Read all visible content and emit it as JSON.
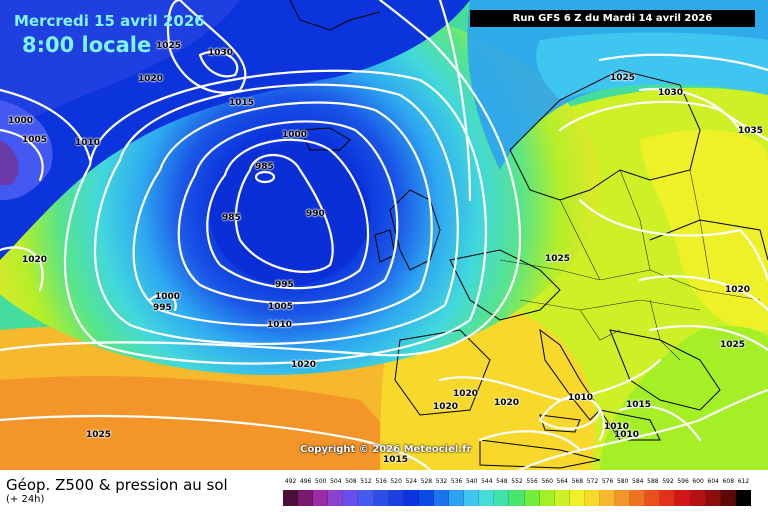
{
  "header": {
    "date": "Mercredi 15 avril 2026",
    "time": "8:00 locale",
    "run": "Run GFS 6 Z du Mardi 14 avril 2026"
  },
  "copyright": "Copyright © 2026 Meteociel.fr",
  "footer": {
    "title": "Géop. Z500 & pression au sol",
    "subtitle": "(+ 24h)"
  },
  "isobar_labels": [
    "1025",
    "1030",
    "1020",
    "1015",
    "1000",
    "1005",
    "1010",
    "1000",
    "985",
    "985",
    "990",
    "995",
    "1020",
    "1000",
    "995",
    "1005",
    "1010",
    "1020",
    "1025",
    "1020",
    "1020",
    "1020",
    "1010",
    "1015",
    "1010",
    "1010",
    "1015",
    "1025",
    "1030",
    "1035",
    "1025",
    "1020",
    "1025"
  ],
  "scale": {
    "values": [
      "492",
      "496",
      "500",
      "504",
      "508",
      "512",
      "516",
      "520",
      "524",
      "528",
      "532",
      "536",
      "540",
      "544",
      "548",
      "552",
      "556",
      "560",
      "564",
      "568",
      "572",
      "576",
      "580",
      "584",
      "588",
      "592",
      "596",
      "600",
      "604",
      "608",
      "612"
    ],
    "colors": [
      "#4b0f3c",
      "#7a1a6e",
      "#9b2aa4",
      "#8d41d2",
      "#6a4ff0",
      "#4359f2",
      "#2a4ee8",
      "#1f3fe0",
      "#0b34dc",
      "#0a4ce8",
      "#1a74ef",
      "#2ca3f2",
      "#3fc6f0",
      "#46dcd8",
      "#40e2a8",
      "#48e66e",
      "#74ec3e",
      "#a4ef26",
      "#cdf026",
      "#eef028",
      "#f8d82a",
      "#f6b82c",
      "#f4952a",
      "#f07322",
      "#ea4f1c",
      "#e2301a",
      "#d01616",
      "#b21212",
      "#8c0e0e",
      "#5c0808",
      "#000000"
    ]
  }
}
